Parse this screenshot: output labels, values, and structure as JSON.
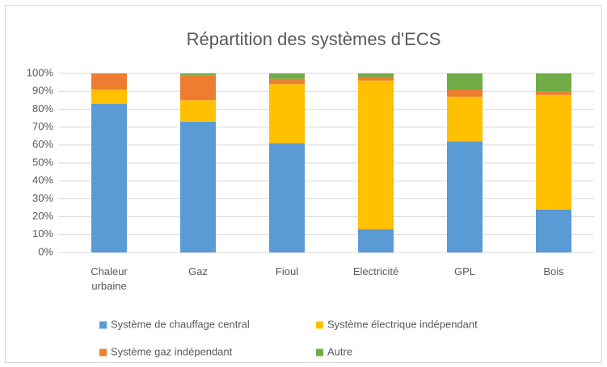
{
  "chart_data": {
    "type": "stacked_bar",
    "title": "Répartition des systèmes d'ECS",
    "categories": [
      "Chaleur urbaine",
      "Gaz",
      "Fioul",
      "Electricité",
      "GPL",
      "Bois"
    ],
    "series": [
      {
        "name": "Système de chauffage central",
        "color": "#5b9bd5",
        "values": [
          83,
          73,
          61,
          13,
          62,
          24
        ]
      },
      {
        "name": "Système électrique indépendant",
        "color": "#ffc000",
        "values": [
          8,
          12,
          33,
          83,
          25,
          64
        ]
      },
      {
        "name": "Système gaz indépendant",
        "color": "#ed7d31",
        "values": [
          9,
          14,
          3,
          2,
          4,
          2
        ]
      },
      {
        "name": "Autre",
        "color": "#70ad47",
        "values": [
          0,
          1,
          3,
          2,
          9,
          10
        ]
      }
    ],
    "ylim": [
      0,
      100
    ],
    "yticks": [
      {
        "value": 0,
        "label": "0%"
      },
      {
        "value": 10,
        "label": "10%"
      },
      {
        "value": 20,
        "label": "20%"
      },
      {
        "value": 30,
        "label": "30%"
      },
      {
        "value": 40,
        "label": "40%"
      },
      {
        "value": 50,
        "label": "50%"
      },
      {
        "value": 60,
        "label": "60%"
      },
      {
        "value": 70,
        "label": "70%"
      },
      {
        "value": 80,
        "label": "80%"
      },
      {
        "value": 90,
        "label": "90%"
      },
      {
        "value": 100,
        "label": "100%"
      }
    ],
    "grid": true,
    "legend": "bottom"
  }
}
